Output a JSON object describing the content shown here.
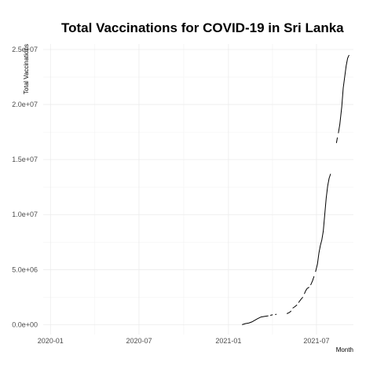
{
  "chart_data": {
    "type": "line",
    "title": "Total Vaccinations for COVID-19 in Sri Lanka",
    "xlabel": "Month",
    "ylabel": "Total Vaccinations",
    "x_type": "date",
    "xlim": [
      "2019-12-17",
      "2021-09-15"
    ],
    "ylim": [
      -900000,
      25500000
    ],
    "x_ticks": [
      {
        "date": "2020-01-01",
        "label": "2020-01"
      },
      {
        "date": "2020-07-01",
        "label": "2020-07"
      },
      {
        "date": "2021-01-01",
        "label": "2021-01"
      },
      {
        "date": "2021-07-01",
        "label": "2021-07"
      }
    ],
    "y_ticks": [
      {
        "value": 0,
        "label": "0.0e+00"
      },
      {
        "value": 5000000,
        "label": "5.0e+06"
      },
      {
        "value": 10000000,
        "label": "1.0e+07"
      },
      {
        "value": 15000000,
        "label": "1.5e+07"
      },
      {
        "value": 20000000,
        "label": "2.0e+07"
      },
      {
        "value": 25000000,
        "label": "2.5e+07"
      }
    ],
    "grid": true,
    "series": [
      {
        "color": "#000000",
        "segments": [
          [
            [
              "2021-01-29",
              0
            ],
            [
              "2021-02-05",
              100000
            ],
            [
              "2021-02-12",
              150000
            ],
            [
              "2021-02-18",
              250000
            ],
            [
              "2021-02-24",
              400000
            ],
            [
              "2021-03-02",
              550000
            ],
            [
              "2021-03-09",
              700000
            ],
            [
              "2021-03-16",
              750000
            ],
            [
              "2021-03-24",
              800000
            ]
          ],
          [
            [
              "2021-03-28",
              850000
            ],
            [
              "2021-04-02",
              900000
            ]
          ],
          [
            [
              "2021-04-07",
              920000
            ],
            [
              "2021-04-10",
              950000
            ]
          ],
          [
            [
              "2021-05-01",
              1000000
            ],
            [
              "2021-05-06",
              1100000
            ],
            [
              "2021-05-10",
              1250000
            ]
          ],
          [
            [
              "2021-05-13",
              1500000
            ],
            [
              "2021-05-18",
              1650000
            ],
            [
              "2021-05-22",
              1800000
            ]
          ],
          [
            [
              "2021-05-25",
              2000000
            ],
            [
              "2021-05-30",
              2300000
            ],
            [
              "2021-06-03",
              2500000
            ]
          ],
          [
            [
              "2021-06-06",
              2800000
            ],
            [
              "2021-06-09",
              3100000
            ],
            [
              "2021-06-12",
              3300000
            ],
            [
              "2021-06-16",
              3400000
            ]
          ],
          [
            [
              "2021-06-19",
              3600000
            ],
            [
              "2021-06-23",
              4000000
            ],
            [
              "2021-06-26",
              4400000
            ]
          ],
          [
            [
              "2021-06-29",
              4800000
            ],
            [
              "2021-07-03",
              5500000
            ],
            [
              "2021-07-06",
              6500000
            ],
            [
              "2021-07-09",
              7200000
            ],
            [
              "2021-07-12",
              7700000
            ],
            [
              "2021-07-15",
              8500000
            ],
            [
              "2021-07-18",
              10000000
            ],
            [
              "2021-07-21",
              11500000
            ],
            [
              "2021-07-24",
              12600000
            ],
            [
              "2021-07-27",
              13300000
            ],
            [
              "2021-07-30",
              13700000
            ]
          ],
          [
            [
              "2021-08-11",
              16500000
            ],
            [
              "2021-08-13",
              17000000
            ]
          ],
          [
            [
              "2021-08-15",
              17400000
            ],
            [
              "2021-08-18",
              18200000
            ],
            [
              "2021-08-22",
              19800000
            ],
            [
              "2021-08-25",
              21500000
            ],
            [
              "2021-08-28",
              22500000
            ],
            [
              "2021-08-31",
              23500000
            ],
            [
              "2021-09-03",
              24200000
            ],
            [
              "2021-09-06",
              24500000
            ]
          ]
        ]
      }
    ]
  }
}
